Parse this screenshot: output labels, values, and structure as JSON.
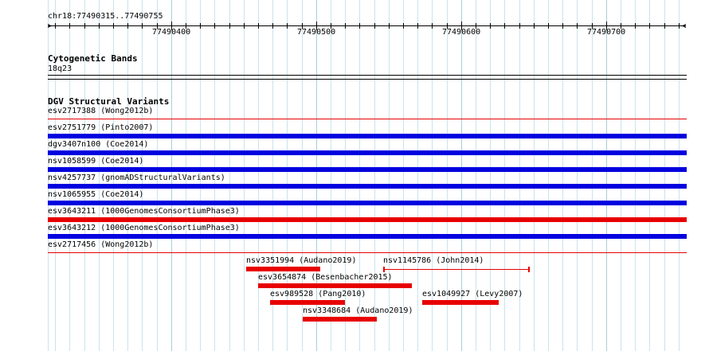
{
  "colors": {
    "grid": "#c9e4ec",
    "grid_major": "#a9cfda",
    "loss": "#0000e0",
    "gain": "#e80000",
    "rule": "#000000"
  },
  "ruler": {
    "region": "chr18:77490315..77490755",
    "start": 77490315,
    "end": 77490755,
    "labels": [
      "77490400",
      "77490500",
      "77490600",
      "77490700"
    ]
  },
  "cytoband": {
    "title": "Cytogenetic Bands",
    "band": "18q23"
  },
  "dgv": {
    "title": "DGV Structural Variants",
    "rows": [
      {
        "label": "esv2717388 (Wong2012b)",
        "type": "thin",
        "color": "gain"
      },
      {
        "label": "esv2751779 (Pinto2007)",
        "type": "thick",
        "color": "loss"
      },
      {
        "label": "dgv3407n100 (Coe2014)",
        "type": "thick",
        "color": "loss"
      },
      {
        "label": "nsv1058599 (Coe2014)",
        "type": "thick",
        "color": "loss"
      },
      {
        "label": "nsv4257737 (gnomADStructuralVariants)",
        "type": "thick",
        "color": "loss"
      },
      {
        "label": "nsv1065955 (Coe2014)",
        "type": "thick",
        "color": "loss"
      },
      {
        "label": "esv3643211 (1000GenomesConsortiumPhase3)",
        "type": "thick",
        "color": "gain"
      },
      {
        "label": "esv3643212 (1000GenomesConsortiumPhase3)",
        "type": "thick",
        "color": "loss"
      },
      {
        "label": "esv2717456 (Wong2012b)",
        "type": "thin",
        "color": "gain"
      }
    ],
    "features": [
      {
        "label": "nsv3351994 (Audano2019)",
        "start": 77490452,
        "end": 77490503,
        "style": "bar",
        "color": "gain"
      },
      {
        "label": "nsv1145786 (John2014)",
        "start": 77490546,
        "end": 77490647,
        "style": "line",
        "color": "gain"
      },
      {
        "label": "esv3654874 (Besenbacher2015)",
        "start": 77490460,
        "end": 77490566,
        "style": "bar",
        "color": "gain"
      },
      {
        "label": "esv989528 (Pang2010)",
        "start": 77490468,
        "end": 77490520,
        "style": "bar",
        "color": "gain"
      },
      {
        "label": "esv1049927 (Levy2007)",
        "start": 77490573,
        "end": 77490626,
        "style": "bar",
        "color": "gain"
      },
      {
        "label": "nsv3348684 (Audano2019)",
        "start": 77490491,
        "end": 77490542,
        "style": "bar",
        "color": "gain"
      }
    ]
  }
}
